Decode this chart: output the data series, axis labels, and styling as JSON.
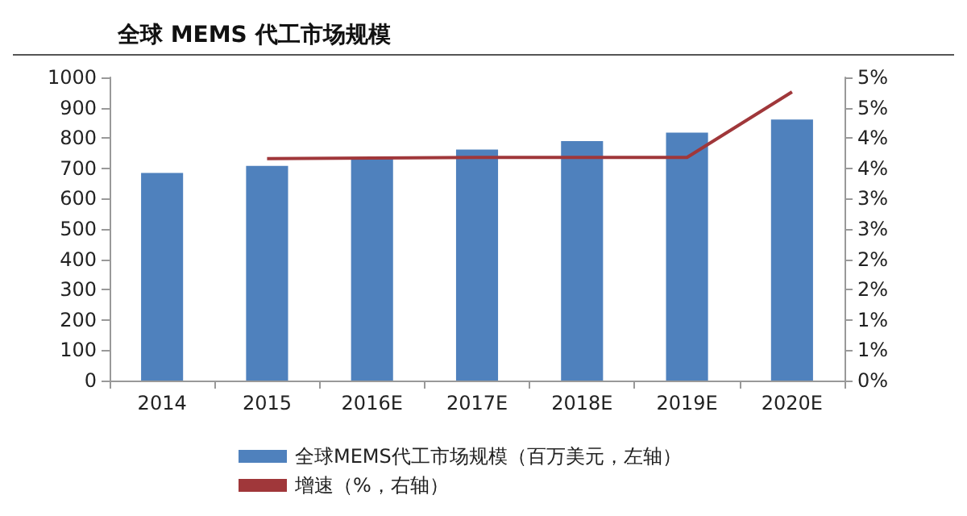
{
  "chart_data": {
    "type": "bar",
    "title": "全球 MEMS 代工市场规模",
    "categories": [
      "2014",
      "2015",
      "2016E",
      "2017E",
      "2018E",
      "2019E",
      "2020E"
    ],
    "series": [
      {
        "name": "全球MEMS代工市场规模（百万美元，左轴）",
        "color": "#4f81bd",
        "values": [
          685,
          708,
          735,
          762,
          790,
          818,
          861
        ]
      },
      {
        "name": "增速（%，右轴）",
        "type": "line",
        "axis": "y2",
        "color": "#a0373a",
        "values": [
          null,
          3.66,
          3.67,
          3.68,
          3.68,
          3.68,
          4.76
        ]
      }
    ],
    "ylim": [
      0,
      1000
    ],
    "yticks": [
      0,
      100,
      200,
      300,
      400,
      500,
      600,
      700,
      800,
      900,
      1000
    ],
    "y2lim": [
      0,
      5
    ],
    "y2ticks": [
      {
        "value": 0,
        "label": "0%"
      },
      {
        "value": 0.5,
        "label": "1%"
      },
      {
        "value": 1,
        "label": "1%"
      },
      {
        "value": 1.5,
        "label": "2%"
      },
      {
        "value": 2,
        "label": "2%"
      },
      {
        "value": 2.5,
        "label": "3%"
      },
      {
        "value": 3,
        "label": "3%"
      },
      {
        "value": 3.5,
        "label": "4%"
      },
      {
        "value": 4,
        "label": "4%"
      },
      {
        "value": 4.5,
        "label": "5%"
      },
      {
        "value": 5,
        "label": "5%"
      }
    ],
    "grid": false,
    "legend": "bottom",
    "marker": "none",
    "line_style": "solid"
  }
}
